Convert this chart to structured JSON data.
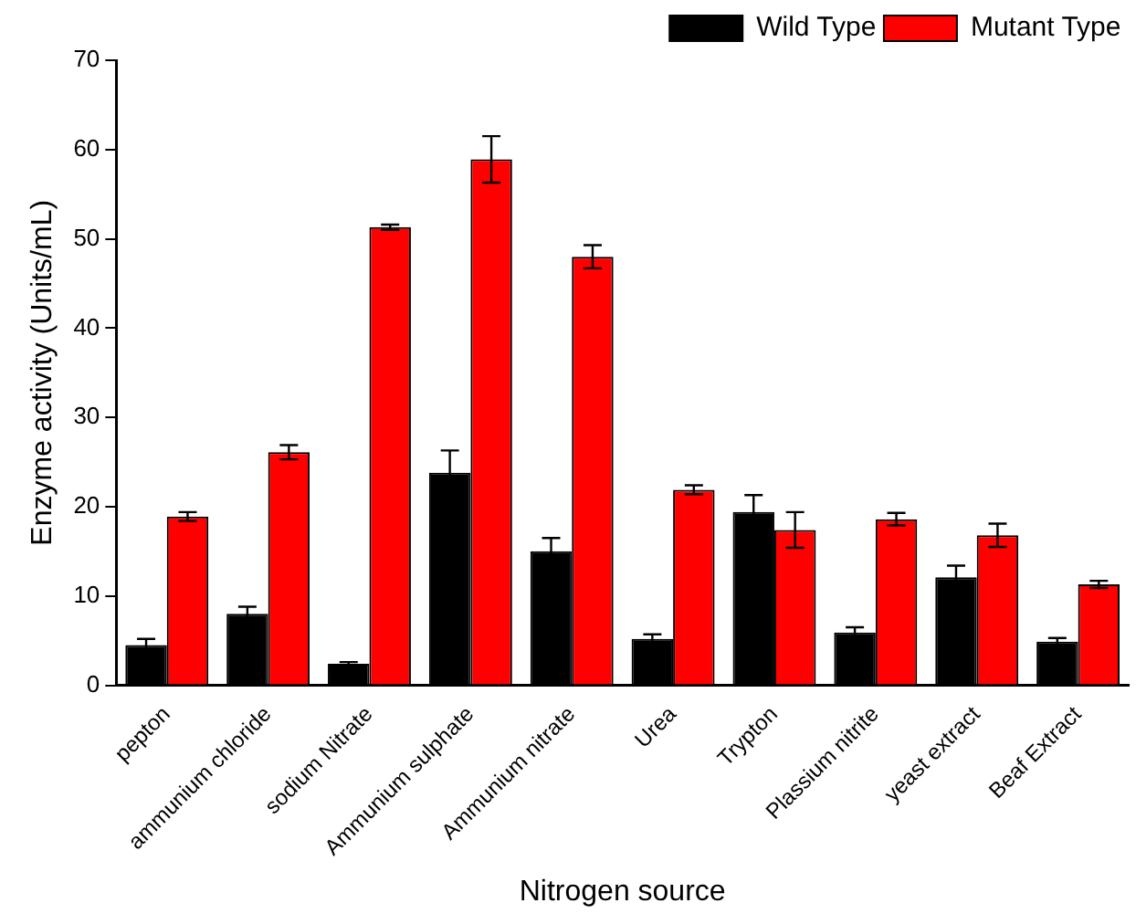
{
  "chart_data": {
    "type": "bar",
    "xlabel": "Nitrogen source",
    "ylabel": "Enzyme activity (Units/mL)",
    "categories": [
      "pepton",
      "ammunium chloride",
      "sodium Nitrate",
      "Ammunium sulphate",
      "Ammunium nitrate",
      "Urea",
      "Trypton",
      "Plassium nitrite",
      "yeast extract",
      "Beaf Extract"
    ],
    "series": [
      {
        "name": "Wild Type",
        "color": "#000000",
        "values": [
          4.5,
          8.0,
          2.4,
          23.8,
          15.0,
          5.2,
          19.4,
          5.9,
          12.1,
          4.9
        ],
        "errors": [
          0.7,
          0.8,
          0.2,
          2.5,
          1.5,
          0.5,
          1.9,
          0.6,
          1.3,
          0.4
        ]
      },
      {
        "name": "Mutant Type",
        "color": "#ff0000",
        "values": [
          18.9,
          26.1,
          51.3,
          58.9,
          48.0,
          21.9,
          17.4,
          18.6,
          16.8,
          11.3
        ],
        "errors": [
          0.5,
          0.8,
          0.3,
          2.6,
          1.3,
          0.5,
          2.0,
          0.7,
          1.3,
          0.4
        ]
      }
    ],
    "ylim": [
      0,
      70
    ],
    "yticks": [
      0,
      10,
      20,
      30,
      40,
      50,
      60,
      70
    ],
    "grid": false,
    "legend": "top right"
  }
}
